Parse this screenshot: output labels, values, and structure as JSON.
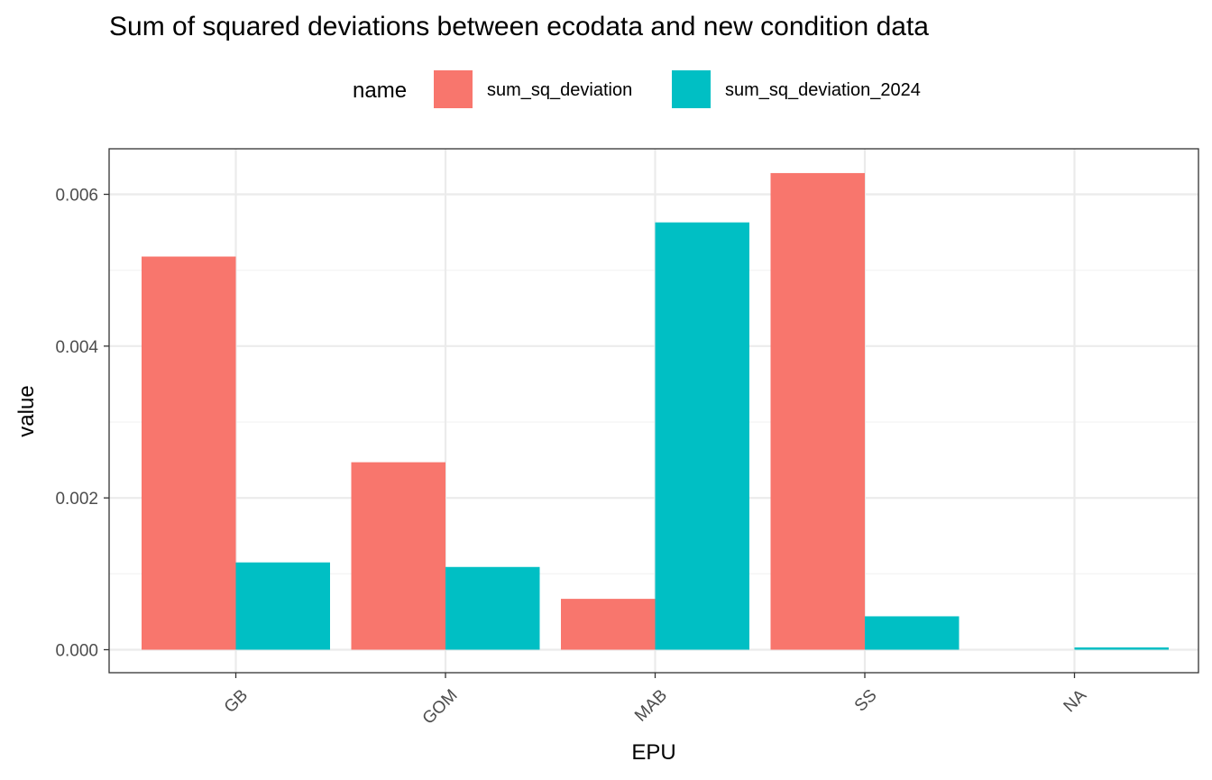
{
  "chart_data": {
    "type": "bar",
    "title": "Sum of squared deviations between ecodata and new condition data",
    "xlabel": "EPU",
    "ylabel": "value",
    "categories": [
      "GB",
      "GOM",
      "MAB",
      "SS",
      "NA"
    ],
    "series": [
      {
        "name": "sum_sq_deviation",
        "color": "#F8766D",
        "values": [
          0.00518,
          0.00247,
          0.00067,
          0.00628,
          null
        ]
      },
      {
        "name": "sum_sq_deviation_2024",
        "color": "#00BFC4",
        "values": [
          0.00115,
          0.00109,
          0.00563,
          0.00044,
          3e-05
        ]
      }
    ],
    "ylim": [
      0,
      0.0066
    ],
    "yticks": [
      "0.000",
      "0.002",
      "0.004",
      "0.006"
    ],
    "ytick_values": [
      0,
      0.002,
      0.004,
      0.006
    ],
    "legend": {
      "title": "name",
      "position": "top"
    },
    "grid": true
  }
}
